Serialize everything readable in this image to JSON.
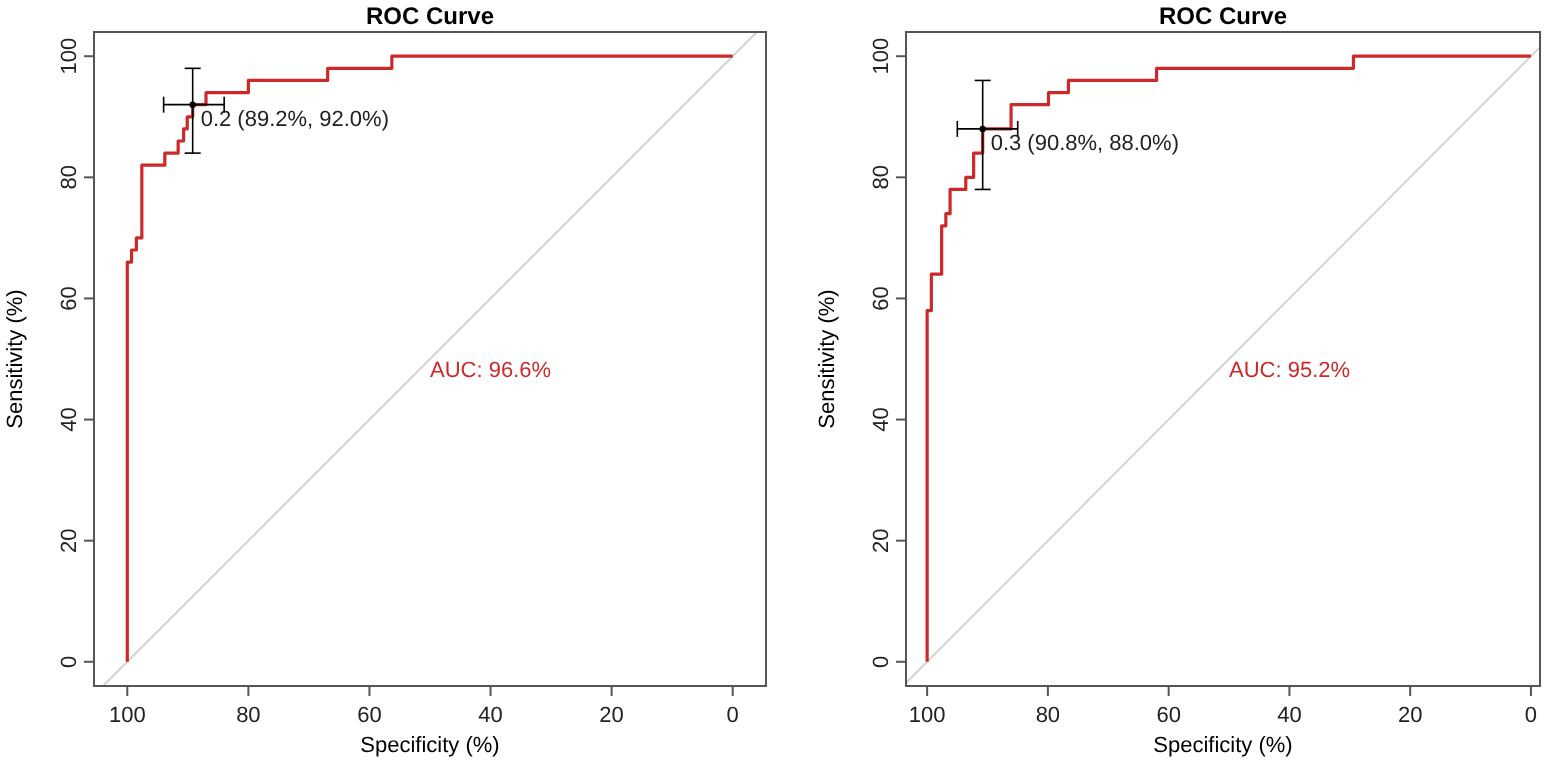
{
  "chart_data": [
    {
      "type": "line",
      "title": "ROC Curve",
      "xlabel": "Specificity (%)",
      "ylabel": "Sensitivity (%)",
      "xlim": [
        105.5,
        -5.5
      ],
      "ylim": [
        -4,
        104
      ],
      "xticks": [
        100,
        80,
        60,
        40,
        20,
        0
      ],
      "yticks": [
        0,
        20,
        40,
        60,
        80,
        100
      ],
      "annotations": [
        "AUC: 96.6%",
        {
          "text": "0.2 (89.2%, 92.0%)",
          "x": 89.2,
          "y": 92
        }
      ],
      "series": [
        {
          "color": "#d3d3d3",
          "x": [
            104,
            -4
          ],
          "values": [
            -4,
            104
          ]
        },
        {
          "color": "#cc2a2a",
          "x": [
            100,
            100,
            99.3,
            99.3,
            98.5,
            98.5,
            97.6,
            97.6,
            93.8,
            93.8,
            91.6,
            91.6,
            90.7,
            90.7,
            90.1,
            90.1,
            89.2,
            89.2,
            87,
            87,
            80,
            80,
            66.9,
            66.9,
            56.3,
            56.3,
            0
          ],
          "values": [
            0,
            66,
            66,
            68,
            68,
            70,
            70,
            82,
            82,
            84,
            84,
            86,
            86,
            88,
            88,
            90,
            90,
            92,
            92,
            94,
            94,
            96,
            96,
            98,
            98,
            100,
            100
          ]
        },
        {
          "type": "scatter",
          "color": "#000000",
          "marker": "circle",
          "x": [
            89.2
          ],
          "values": [
            92
          ],
          "errors": [
            [
              84,
              98
            ]
          ],
          "xerrors": [
            [
              84,
              94
            ]
          ]
        }
      ]
    },
    {
      "type": "line",
      "title": "ROC Curve",
      "xlabel": "Specificity (%)",
      "ylabel": "Sensitivity (%)",
      "xlim": [
        103.5,
        -1.5
      ],
      "ylim": [
        -4,
        104
      ],
      "xticks": [
        100,
        80,
        60,
        40,
        20,
        0
      ],
      "yticks": [
        0,
        20,
        40,
        60,
        80,
        100
      ],
      "annotations": [
        "AUC: 95.2%",
        {
          "text": "0.3 (90.8%, 88.0%)",
          "x": 90.8,
          "y": 88
        }
      ],
      "series": [
        {
          "color": "#d3d3d3",
          "x": [
            103.5,
            -1.5
          ],
          "values": [
            -3.5,
            101.5
          ]
        },
        {
          "color": "#cc2a2a",
          "x": [
            100,
            100,
            99.3,
            99.3,
            97.6,
            97.6,
            96.9,
            96.9,
            96.2,
            96.2,
            93.6,
            93.6,
            92.3,
            92.3,
            90.8,
            90.8,
            86.1,
            86.1,
            79.9,
            79.9,
            76.6,
            76.6,
            62,
            62,
            29.4,
            29.4,
            0
          ],
          "values": [
            0,
            58,
            58,
            64,
            64,
            72,
            72,
            74,
            74,
            78,
            78,
            80,
            80,
            84,
            84,
            88,
            88,
            92,
            92,
            94,
            94,
            96,
            96,
            98,
            98,
            100,
            100
          ]
        },
        {
          "type": "scatter",
          "color": "#000000",
          "marker": "circle",
          "x": [
            90.8
          ],
          "values": [
            88
          ],
          "errors": [
            [
              78,
              96
            ]
          ],
          "xerrors": [
            [
              85,
              95
            ]
          ]
        }
      ]
    }
  ]
}
